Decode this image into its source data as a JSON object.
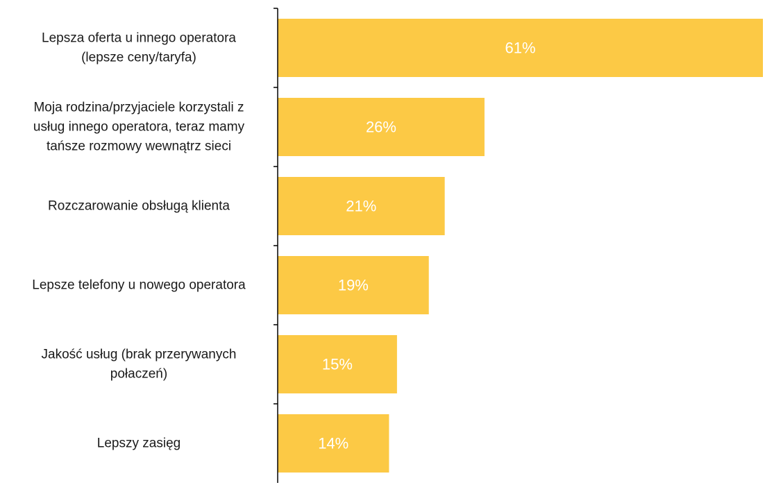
{
  "chart_data": {
    "type": "bar",
    "orientation": "horizontal",
    "categories": [
      [
        "Lepsza oferta u innego operatora",
        "(lepsze ceny/taryfa)"
      ],
      [
        "Moja rodzina/przyjaciele korzystali z",
        "usług innego operatora, teraz mamy",
        "tańsze rozmowy wewnątrz sieci"
      ],
      [
        "Rozczarowanie obsługą klienta"
      ],
      [
        "Lepsze telefony u nowego operatora"
      ],
      [
        "Jakość usług (brak przerywanych",
        "połaczeń)"
      ],
      [
        "Lepszy zasięg"
      ]
    ],
    "values": [
      61,
      26,
      21,
      19,
      15,
      14
    ],
    "value_labels": [
      "61%",
      "26%",
      "21%",
      "19%",
      "15%",
      "14%"
    ],
    "bar_color": "#FCC945",
    "axis_color": "#000000",
    "xlim": [
      0,
      61
    ],
    "gridlines": false,
    "legend": "none",
    "title": "",
    "xlabel": "",
    "ylabel": ""
  }
}
